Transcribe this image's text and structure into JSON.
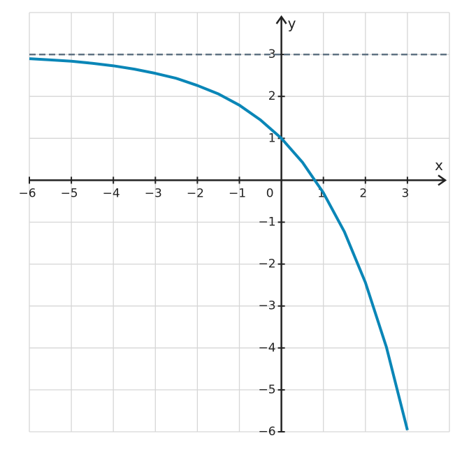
{
  "chart_data": {
    "type": "line",
    "x_label": "x",
    "y_label": "y",
    "origin_label": "0",
    "x": [
      -6,
      -5.5,
      -5,
      -4.5,
      -4,
      -3.5,
      -3,
      -2.5,
      -2,
      -1.5,
      -1,
      -0.5,
      0,
      0.5,
      1,
      1.5,
      2,
      2.5,
      3
    ],
    "series": [
      {
        "color": "#0a86b7",
        "values": [
          2.9,
          2.87,
          2.84,
          2.79,
          2.73,
          2.65,
          2.55,
          2.43,
          2.26,
          2.06,
          1.79,
          1.44,
          1,
          0.43,
          -0.3,
          -1.23,
          -2.44,
          -3.98,
          -5.96
        ]
      }
    ],
    "asymptote": {
      "y": 3,
      "color": "#5f7282"
    },
    "xlim": [
      -6,
      4
    ],
    "ylim": [
      -6,
      4
    ],
    "xticks": [
      {
        "value": -6,
        "label": "−6"
      },
      {
        "value": -5,
        "label": "−5"
      },
      {
        "value": -4,
        "label": "−4"
      },
      {
        "value": -3,
        "label": "−3"
      },
      {
        "value": -2,
        "label": "−2"
      },
      {
        "value": -1,
        "label": "−1"
      },
      1,
      2,
      3
    ],
    "yticks": [
      {
        "value": -6,
        "label": "−6"
      },
      {
        "value": -5,
        "label": "−5"
      },
      {
        "value": -4,
        "label": "−4"
      },
      {
        "value": -3,
        "label": "−3"
      },
      {
        "value": -2,
        "label": "−2"
      },
      {
        "value": -1,
        "label": "−1"
      },
      1,
      2,
      3
    ],
    "grid": true
  }
}
